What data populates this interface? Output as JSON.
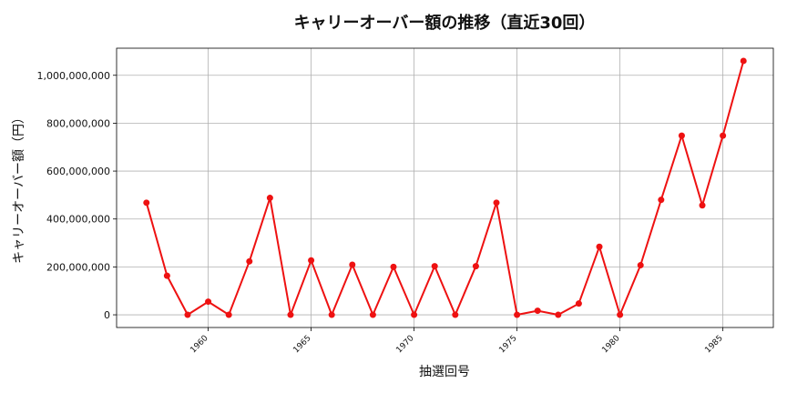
{
  "chart_data": {
    "type": "line",
    "title": "キャリーオーバー額の推移（直近30回）",
    "xlabel": "抽選回号",
    "ylabel": "キャリーオーバー額（円）",
    "x": [
      1957,
      1958,
      1959,
      1960,
      1961,
      1962,
      1963,
      1964,
      1965,
      1966,
      1967,
      1968,
      1969,
      1970,
      1971,
      1972,
      1973,
      1974,
      1975,
      1976,
      1977,
      1978,
      1979,
      1980,
      1981,
      1982,
      1983,
      1984,
      1985,
      1986
    ],
    "series": [
      {
        "values": [
          468000000,
          163000000,
          0,
          55000000,
          0,
          223000000,
          488000000,
          0,
          227000000,
          0,
          209000000,
          0,
          200000000,
          0,
          203000000,
          0,
          203000000,
          468000000,
          0,
          17000000,
          0,
          47000000,
          284000000,
          0,
          207000000,
          480000000,
          748000000,
          457000000,
          748000000,
          1060000000
        ],
        "color": "#ee1111"
      }
    ],
    "xticks": [
      1960,
      1965,
      1970,
      1975,
      1980,
      1985
    ],
    "yticks": [
      0,
      200000000,
      400000000,
      600000000,
      800000000,
      1000000000
    ],
    "ytick_labels": [
      "0",
      "200,000,000",
      "400,000,000",
      "600,000,000",
      "800,000,000",
      "1,000,000,000"
    ],
    "xlim": [
      1955.55,
      1987.45
    ],
    "ylim": [
      -53000000,
      1113000000
    ],
    "grid": true,
    "x_tick_rotation": -45
  }
}
